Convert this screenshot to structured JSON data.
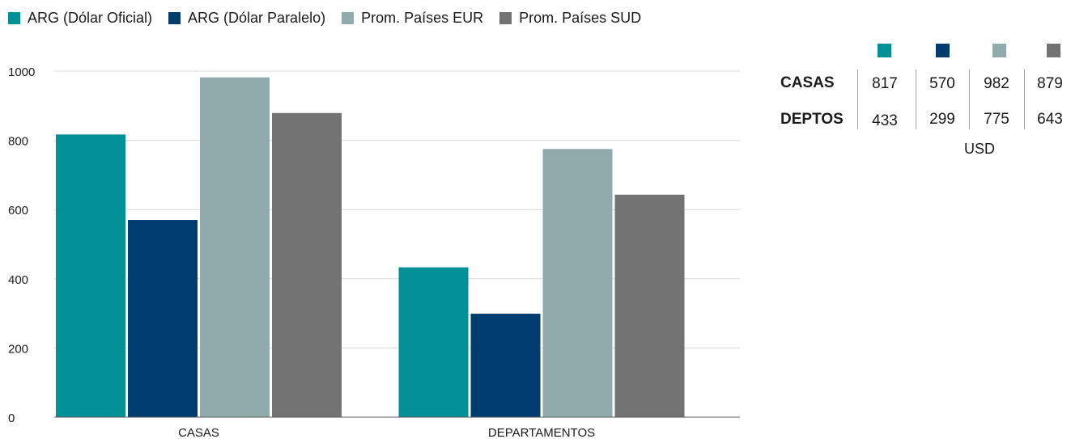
{
  "legend": [
    {
      "label": "ARG (Dólar Oficial)",
      "color": "#009096"
    },
    {
      "label": "ARG (Dólar Paralelo)",
      "color": "#003d6e"
    },
    {
      "label": "Prom. Países EUR",
      "color": "#91aaac"
    },
    {
      "label": "Prom. Países SUD",
      "color": "#737373"
    }
  ],
  "chart_data": {
    "type": "bar",
    "categories": [
      "CASAS",
      "DEPARTAMENTOS"
    ],
    "series": [
      {
        "name": "ARG (Dólar Oficial)",
        "color": "#009096",
        "values": [
          817,
          433
        ]
      },
      {
        "name": "ARG (Dólar Paralelo)",
        "color": "#003d6e",
        "values": [
          570,
          299
        ]
      },
      {
        "name": "Prom. Países EUR",
        "color": "#91aaac",
        "values": [
          982,
          775
        ]
      },
      {
        "name": "Prom. Países SUD",
        "color": "#737373",
        "values": [
          879,
          643
        ]
      }
    ],
    "ylim": [
      0,
      1000
    ],
    "yticks": [
      0,
      200,
      400,
      600,
      800,
      1000
    ],
    "grid": true,
    "legend_position": "top-left"
  },
  "summary_table": {
    "rows": [
      {
        "label": "CASAS",
        "values": [
          "817",
          "570",
          "982",
          "879"
        ]
      },
      {
        "label": "DEPTOS",
        "values": [
          "433",
          "299",
          "775",
          "643"
        ]
      }
    ],
    "unit": "USD"
  }
}
